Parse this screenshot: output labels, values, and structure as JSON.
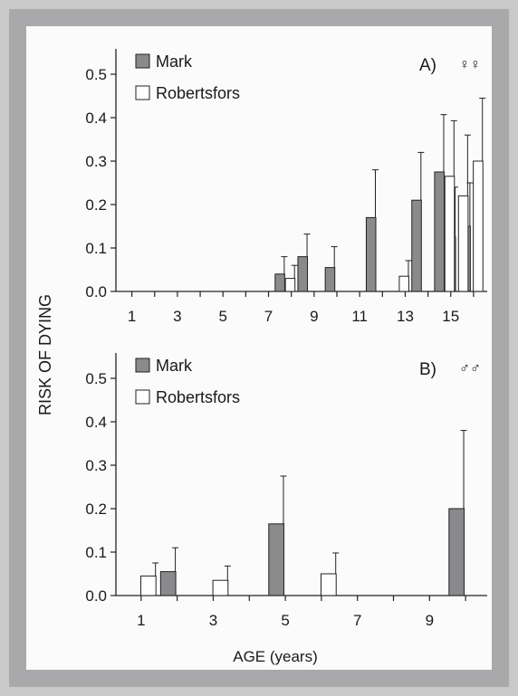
{
  "colors": {
    "mark": "#8a8a8d",
    "robertsfors": "#ffffff",
    "stroke": "#222222",
    "frame": "#a9a9ab",
    "paper": "#fbfbfb"
  },
  "ylabel": "RISK OF DYING",
  "xlabel": "AGE (years)",
  "chart_data": [
    {
      "type": "bar",
      "panel_label": "A)",
      "sex_symbol": "♀♀",
      "legend": [
        "Mark",
        "Robertsfors"
      ],
      "yticks": [
        "0.0",
        "0.1",
        "0.2",
        "0.3",
        "0.4",
        "0.5"
      ],
      "xticks": [
        "1",
        "3",
        "5",
        "7",
        "9",
        "11",
        "13",
        "15"
      ],
      "ylim": [
        0,
        0.55
      ],
      "xlim": [
        0.3,
        16.6
      ],
      "bar_width": 0.42,
      "series": [
        {
          "name": "Mark",
          "points": [
            {
              "x": 7.5,
              "y": 0.04,
              "err": 0.04
            },
            {
              "x": 8.5,
              "y": 0.08,
              "err": 0.052
            },
            {
              "x": 9.7,
              "y": 0.055,
              "err": 0.048
            },
            {
              "x": 11.5,
              "y": 0.17,
              "err": 0.11
            },
            {
              "x": 13.5,
              "y": 0.21,
              "err": 0.11
            },
            {
              "x": 14.5,
              "y": 0.275,
              "err": 0.132
            },
            {
              "x": 15.0,
              "y": 0.125,
              "err": 0.115
            },
            {
              "x": 15.65,
              "y": 0.15,
              "err": 0.1
            }
          ]
        },
        {
          "name": "Robertsfors",
          "points": [
            {
              "x": 7.95,
              "y": 0.03,
              "err": 0.03
            },
            {
              "x": 12.95,
              "y": 0.035,
              "err": 0.036
            },
            {
              "x": 14.95,
              "y": 0.265,
              "err": 0.128
            },
            {
              "x": 15.55,
              "y": 0.22,
              "err": 0.14
            },
            {
              "x": 16.2,
              "y": 0.3,
              "err": 0.145
            }
          ]
        }
      ]
    },
    {
      "type": "bar",
      "panel_label": "B)",
      "sex_symbol": "♂♂",
      "legend": [
        "Mark",
        "Robertsfors"
      ],
      "yticks": [
        "0.0",
        "0.1",
        "0.2",
        "0.3",
        "0.4",
        "0.5"
      ],
      "xticks": [
        "1",
        "3",
        "5",
        "7",
        "9"
      ],
      "ylim": [
        0,
        0.55
      ],
      "xlim": [
        0.3,
        10.6
      ],
      "bar_width": 0.42,
      "series": [
        {
          "name": "Mark",
          "points": [
            {
              "x": 1.75,
              "y": 0.055,
              "err": 0.055
            },
            {
              "x": 4.75,
              "y": 0.165,
              "err": 0.11
            },
            {
              "x": 9.75,
              "y": 0.2,
              "err": 0.18
            }
          ]
        },
        {
          "name": "Robertsfors",
          "points": [
            {
              "x": 1.2,
              "y": 0.045,
              "err": 0.03
            },
            {
              "x": 3.2,
              "y": 0.035,
              "err": 0.033
            },
            {
              "x": 6.2,
              "y": 0.05,
              "err": 0.048
            }
          ]
        }
      ]
    }
  ]
}
